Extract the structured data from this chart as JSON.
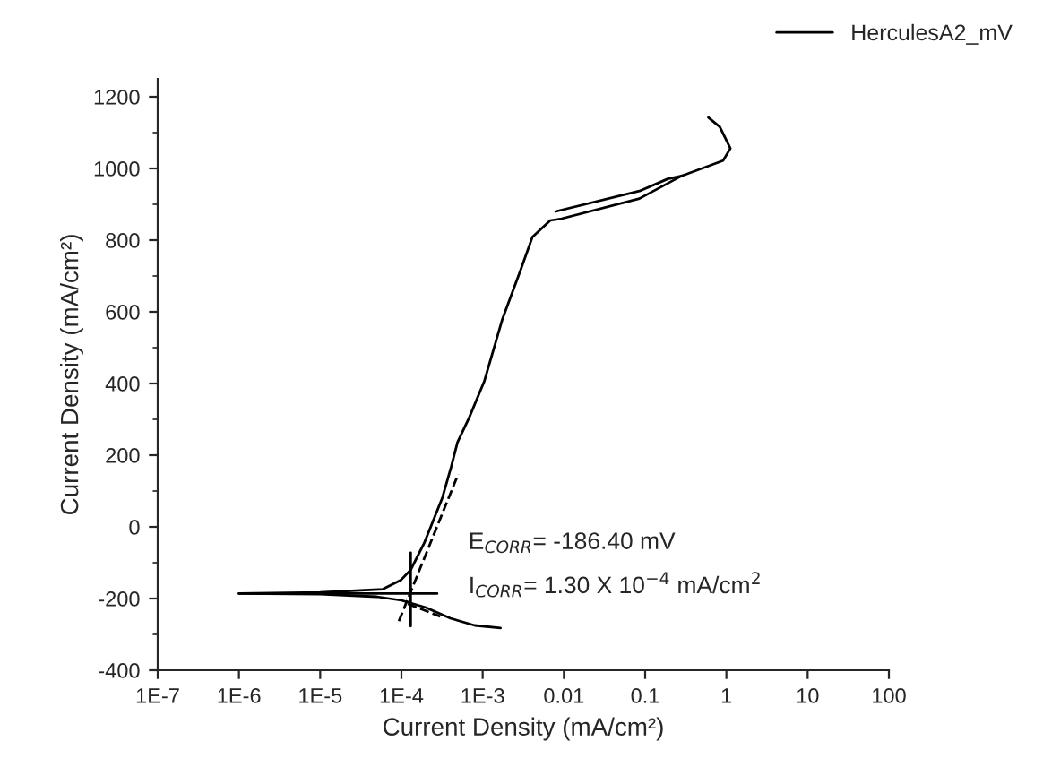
{
  "chart_data": {
    "type": "line",
    "xlabel": "Current Density (mA/cm²)",
    "ylabel": "Current Density (mA/cm²)",
    "log": "x",
    "xlim": [
      1e-07,
      100
    ],
    "ylim": [
      -400,
      1250
    ],
    "xticks": [
      {
        "value": 1e-07,
        "label": "1E-7"
      },
      {
        "value": 1e-06,
        "label": "1E-6"
      },
      {
        "value": 1e-05,
        "label": "1E-5"
      },
      {
        "value": 0.0001,
        "label": "1E-4"
      },
      {
        "value": 0.001,
        "label": "1E-3"
      },
      0.01,
      0.1,
      1,
      10,
      100
    ],
    "yticks": [
      -400,
      -200,
      0,
      200,
      400,
      600,
      800,
      1000,
      1200
    ],
    "grid": false,
    "legend": "top right",
    "marker": "none",
    "line_style": "solid",
    "annotations": [
      "E$_{CORR}$= -186.40 mV",
      "I$_{CORR}$= 1.30 X 10$^{−4}$ mA/cm$^{2}$"
    ],
    "series": [
      {
        "name": "HerculesA2_mV",
        "color": "#000000",
        "x": [
          0.00166,
          0.0008,
          0.0004,
          0.0002,
          0.0001,
          5e-05,
          1e-05,
          1e-06,
          1e-05,
          5.9e-05,
          9.8e-05,
          0.00013,
          0.00019,
          0.00032,
          0.00041,
          0.00049,
          0.00068,
          0.00105,
          0.00174,
          0.0029,
          0.0041,
          0.0068,
          0.0094,
          0.085,
          0.28,
          0.91,
          1.12,
          0.83,
          0.6
        ],
        "values": [
          -282,
          -275,
          -255,
          -225,
          -205,
          -195,
          -188,
          -186,
          -183,
          -174,
          -149,
          -120,
          -46,
          82,
          168,
          236,
          304,
          407,
          578,
          714,
          809,
          855,
          860,
          916,
          979,
          1022,
          1056,
          1116,
          1142
        ]
      },
      {
        "color": "#000000",
        "x": [
          0.0079,
          0.085,
          0.19,
          0.28
        ],
        "values": [
          880,
          937,
          971,
          979
        ]
      },
      {
        "color": "#000000",
        "x": [
          0.00013,
          0.00013
        ],
        "values": [
          -72,
          -277
        ]
      },
      {
        "color": "#000000",
        "x": [
          1e-06,
          0.000275
        ],
        "values": [
          -186,
          -186
        ]
      },
      {
        "color": "#000000",
        "line_style": "dashed",
        "x": [
          9.3e-05,
          0.0005
        ],
        "values": [
          -263,
          147
        ]
      },
      {
        "color": "#000000",
        "line_style": "dashed",
        "x": [
          0.00012,
          0.0003
        ],
        "values": [
          -215,
          -250
        ]
      }
    ]
  }
}
